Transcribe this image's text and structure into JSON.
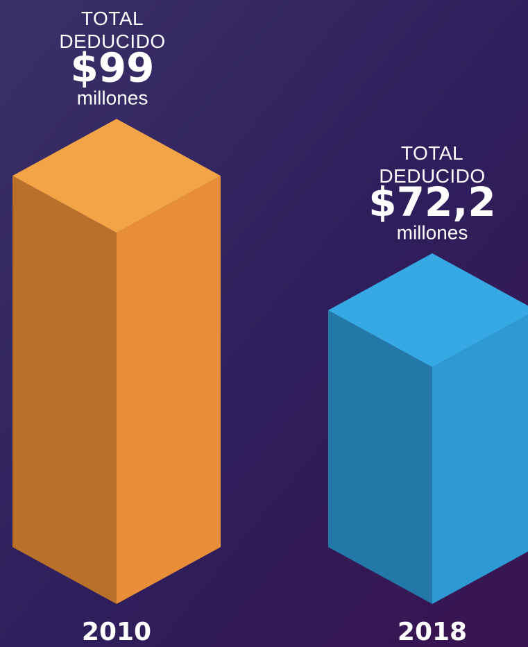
{
  "chart_data": {
    "type": "bar3d",
    "caption": "TOTAL DEDUCIDO",
    "unit": "millones",
    "categories": [
      "2010",
      "2018"
    ],
    "values": [
      99,
      72.2
    ],
    "value_labels": [
      "$99",
      "$72,2"
    ],
    "colors": [
      {
        "top": "#f3a446",
        "left": "#b8702a",
        "right": "#e88e38"
      },
      {
        "top": "#36a9e4",
        "left": "#2279a8",
        "right": "#2d99d5"
      }
    ],
    "ylim": [
      25,
      100
    ]
  }
}
